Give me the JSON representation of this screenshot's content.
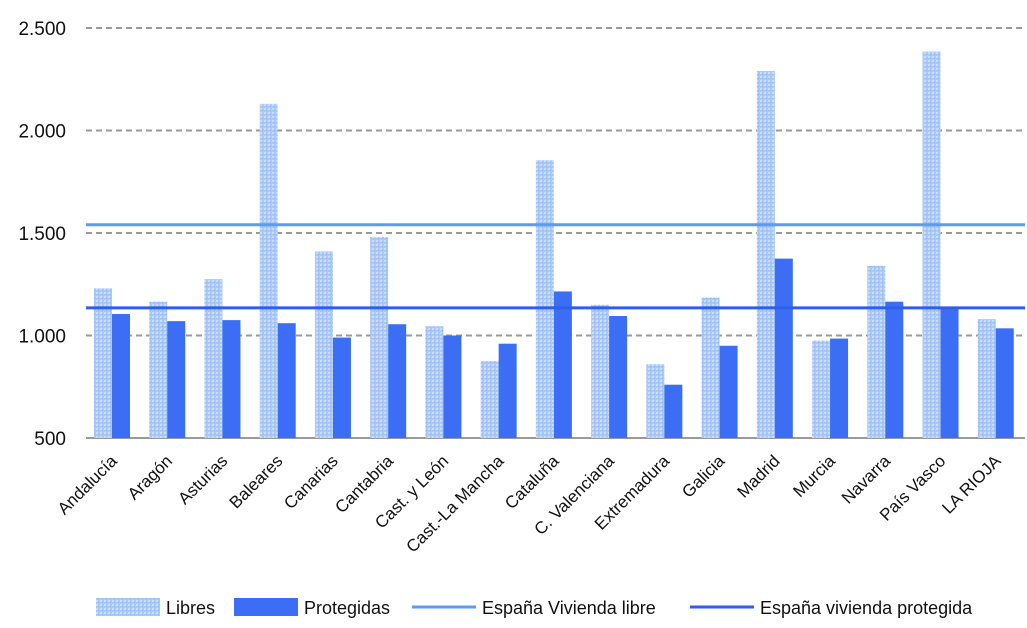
{
  "chart_data": {
    "type": "bar",
    "title": "",
    "xlabel": "",
    "ylabel": "",
    "ylim": [
      500,
      2500
    ],
    "yticks": [
      500,
      1000,
      1500,
      2000,
      2500
    ],
    "ytick_labels": [
      "500",
      "1.000",
      "1.500",
      "2.000",
      "2.500"
    ],
    "grid": "horizontal dashed",
    "legend_position": "bottom",
    "categories": [
      "Andalucía",
      "Aragón",
      "Asturias",
      "Baleares",
      "Canarias",
      "Cantabria",
      "Cast. y León",
      "Cast.-La Mancha",
      "Cataluña",
      "C. Valenciana",
      "Extremadura",
      "Galicia",
      "Madrid",
      "Murcia",
      "Navarra",
      "País Vasco",
      "LA RIOJA"
    ],
    "series": [
      {
        "name": "Libres",
        "color": "#a9c8f5",
        "values": [
          1230,
          1165,
          1275,
          2130,
          1410,
          1480,
          1045,
          875,
          1855,
          1150,
          860,
          1185,
          2290,
          975,
          1340,
          2385,
          1080
        ]
      },
      {
        "name": "Protegidas",
        "color": "#3b6ef5",
        "values": [
          1105,
          1070,
          1075,
          1060,
          990,
          1055,
          1000,
          960,
          1215,
          1095,
          760,
          950,
          1375,
          985,
          1165,
          1135,
          1035
        ]
      }
    ],
    "reference_lines": [
      {
        "name": "España Vivienda libre",
        "color": "#5a9cf0",
        "value": 1540
      },
      {
        "name": "España vivienda protegida",
        "color": "#2f5ee8",
        "value": 1135
      }
    ]
  }
}
